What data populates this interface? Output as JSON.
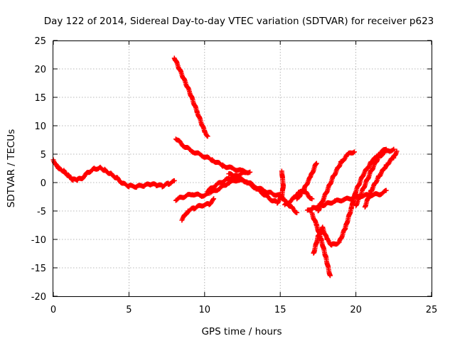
{
  "chart_data": {
    "type": "scatter",
    "title": "Day 122 of 2014, Sidereal Day-to-day VTEC variation (SDTVAR) for receiver p623",
    "xlabel": "GPS time / hours",
    "ylabel": "SDTVAR / TECUs",
    "xlim": [
      0,
      25
    ],
    "ylim": [
      -20,
      25
    ],
    "xticks": [
      "0",
      "5",
      "10",
      "15",
      "20",
      "25"
    ],
    "yticks": [
      "25",
      "20",
      "15",
      "10",
      "5",
      "0",
      "-5",
      "-10",
      "-15",
      "-20"
    ],
    "grid": true,
    "marker": "+",
    "color": "#ff0000",
    "series": [
      {
        "points": [
          [
            0,
            4
          ],
          [
            0.2,
            3
          ],
          [
            0.4,
            2.5
          ],
          [
            0.7,
            2
          ],
          [
            1,
            1.2
          ],
          [
            1.3,
            0.5
          ],
          [
            1.6,
            0.5
          ],
          [
            1.9,
            0.8
          ]
        ]
      },
      {
        "points": [
          [
            1.9,
            0.8
          ],
          [
            2.3,
            1.8
          ],
          [
            2.7,
            2.4
          ],
          [
            3.1,
            2.6
          ],
          [
            3.4,
            2.2
          ],
          [
            3.8,
            1.5
          ],
          [
            4.2,
            0.8
          ],
          [
            4.6,
            -0.2
          ],
          [
            5,
            -0.6
          ],
          [
            5.5,
            -0.7
          ],
          [
            6,
            -0.5
          ],
          [
            6.4,
            -0.3
          ],
          [
            6.8,
            -0.4
          ],
          [
            7.2,
            -0.6
          ],
          [
            7.6,
            -0.2
          ],
          [
            8,
            0.2
          ]
        ]
      },
      {
        "points": [
          [
            8,
            22
          ],
          [
            8.5,
            19
          ],
          [
            9,
            16
          ],
          [
            9.5,
            12.5
          ],
          [
            10,
            9
          ],
          [
            10.2,
            8.2
          ]
        ]
      },
      {
        "points": [
          [
            8.1,
            7.8
          ],
          [
            8.6,
            6.5
          ],
          [
            9.2,
            5.5
          ],
          [
            9.8,
            4.8
          ],
          [
            10.5,
            4
          ],
          [
            11.2,
            3
          ],
          [
            11.8,
            2.5
          ],
          [
            12.5,
            2
          ],
          [
            13,
            1.8
          ]
        ]
      },
      {
        "points": [
          [
            8.1,
            -3
          ],
          [
            8.6,
            -2.5
          ],
          [
            9.2,
            -2
          ],
          [
            9.8,
            -2.3
          ],
          [
            10.3,
            -2
          ]
        ]
      },
      {
        "points": [
          [
            8.5,
            -6.5
          ],
          [
            8.9,
            -5
          ],
          [
            9.3,
            -4.5
          ],
          [
            9.8,
            -4
          ],
          [
            10.3,
            -3.8
          ],
          [
            10.6,
            -3
          ]
        ]
      },
      {
        "points": [
          [
            10.2,
            -1.5
          ],
          [
            10.7,
            -0.5
          ],
          [
            11.2,
            0.2
          ],
          [
            11.7,
            0.8
          ],
          [
            12.2,
            1.3
          ],
          [
            12.7,
            1.8
          ]
        ]
      },
      {
        "points": [
          [
            10.4,
            -1.8
          ],
          [
            11,
            -1
          ],
          [
            11.6,
            0
          ],
          [
            12.2,
            0.5
          ],
          [
            12.8,
            0.2
          ],
          [
            13.4,
            -0.8
          ],
          [
            14,
            -1.5
          ],
          [
            14.5,
            -2
          ],
          [
            15,
            -2.3
          ],
          [
            15.4,
            -3.5
          ],
          [
            15.8,
            -4.5
          ],
          [
            16.1,
            -5.3
          ]
        ]
      },
      {
        "points": [
          [
            11.6,
            1.5
          ],
          [
            12.2,
            1
          ],
          [
            12.8,
            0
          ],
          [
            13.4,
            -1
          ],
          [
            13.9,
            -2
          ],
          [
            14.4,
            -3
          ],
          [
            14.8,
            -3.5
          ],
          [
            15.1,
            -2.5
          ],
          [
            15.2,
            -0.5
          ],
          [
            15.1,
            2
          ]
        ]
      },
      {
        "points": [
          [
            15.3,
            -4
          ],
          [
            15.8,
            -3
          ],
          [
            16.2,
            -1.8
          ],
          [
            16.6,
            -1.5
          ],
          [
            17.1,
            -3
          ]
        ]
      },
      {
        "points": [
          [
            16.1,
            -3
          ],
          [
            16.6,
            -1
          ],
          [
            17,
            1
          ],
          [
            17.4,
            3.5
          ]
        ]
      },
      {
        "points": [
          [
            16.8,
            -5
          ],
          [
            17.1,
            -4.6
          ],
          [
            17.5,
            -4.2
          ],
          [
            18,
            -3.8
          ],
          [
            18.6,
            -3.3
          ],
          [
            19.2,
            -3
          ],
          [
            19.8,
            -2.7
          ],
          [
            20.4,
            -2.3
          ],
          [
            21,
            -2.2
          ],
          [
            21.6,
            -2
          ],
          [
            22,
            -1.5
          ]
        ]
      },
      {
        "points": [
          [
            17.1,
            -5.5
          ],
          [
            17.4,
            -7.5
          ],
          [
            17.7,
            -10
          ],
          [
            18,
            -13
          ],
          [
            18.3,
            -16.5
          ]
        ]
      },
      {
        "points": [
          [
            17.2,
            -12.5
          ],
          [
            17.5,
            -9.5
          ],
          [
            17.8,
            -8
          ],
          [
            18.1,
            -10
          ],
          [
            18.4,
            -11
          ],
          [
            18.9,
            -10.5
          ],
          [
            19.3,
            -8
          ],
          [
            19.7,
            -4.5
          ],
          [
            20,
            -1.5
          ],
          [
            20.5,
            1.5
          ],
          [
            21,
            3.5
          ],
          [
            21.5,
            5
          ],
          [
            22,
            6
          ]
        ]
      },
      {
        "points": [
          [
            17.5,
            -5
          ],
          [
            18,
            -2
          ],
          [
            18.5,
            1
          ],
          [
            19,
            3.5
          ],
          [
            19.5,
            5
          ],
          [
            19.9,
            5.5
          ]
        ]
      },
      {
        "points": [
          [
            20,
            -4
          ],
          [
            20.5,
            -1
          ],
          [
            21,
            2
          ],
          [
            21.5,
            4.5
          ],
          [
            22,
            5.5
          ],
          [
            22.5,
            5.8
          ]
        ]
      },
      {
        "points": [
          [
            20.6,
            -4.2
          ],
          [
            21,
            -1.5
          ],
          [
            21.5,
            1
          ],
          [
            22,
            3
          ],
          [
            22.5,
            4.5
          ],
          [
            22.7,
            5.5
          ]
        ]
      }
    ]
  }
}
